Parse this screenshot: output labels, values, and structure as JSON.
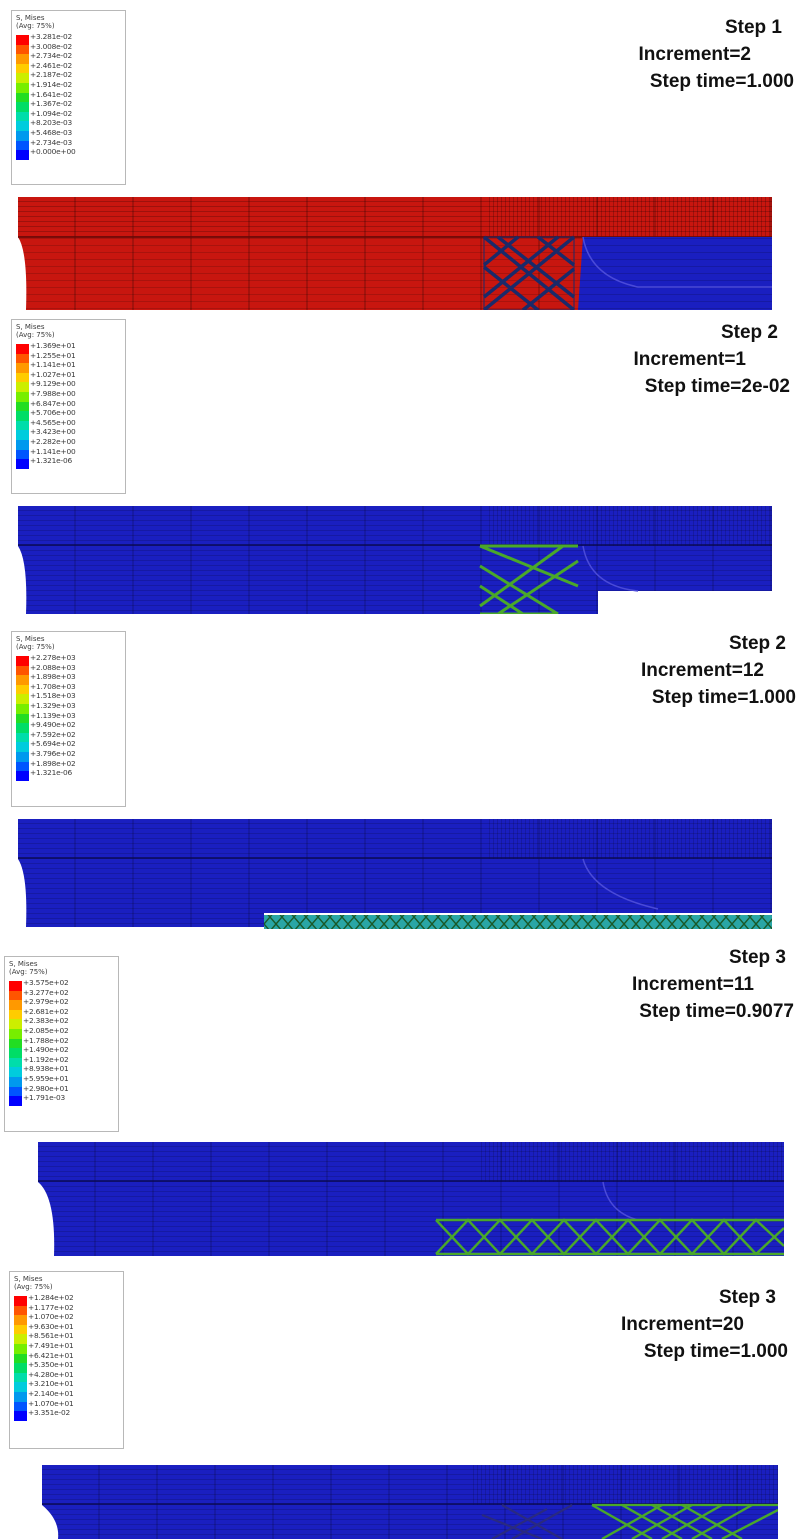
{
  "legend_title": "S, Mises",
  "legend_subtitle": "(Avg: 75%)",
  "legend_colors": [
    "#ff0000",
    "#ff5500",
    "#ff9900",
    "#ffcc00",
    "#ccee00",
    "#77ee00",
    "#22dd22",
    "#00dd66",
    "#00ddaa",
    "#00ccdd",
    "#0099ee",
    "#0055ff",
    "#0000ff"
  ],
  "colors": {
    "mesh_red": "#c8160f",
    "mesh_blue": "#1a1fc0",
    "stent_green": "#4aa82a",
    "stent_teal": "#2aa6a6",
    "stent_navy": "#1a2a6a"
  },
  "panels": [
    {
      "state": "red-stressed",
      "legend_values": [
        "+3.281e-02",
        "+3.008e-02",
        "+2.734e-02",
        "+2.461e-02",
        "+2.187e-02",
        "+1.914e-02",
        "+1.641e-02",
        "+1.367e-02",
        "+1.094e-02",
        "+8.203e-03",
        "+5.468e-03",
        "+2.734e-03",
        "+0.000e+00"
      ],
      "step": "Step 1",
      "increment": "Increment=2",
      "step_time": "Step time=1.000"
    },
    {
      "state": "stent-crimped",
      "legend_values": [
        "+1.369e+01",
        "+1.255e+01",
        "+1.141e+01",
        "+1.027e+01",
        "+9.129e+00",
        "+7.988e+00",
        "+6.847e+00",
        "+5.706e+00",
        "+4.565e+00",
        "+3.423e+00",
        "+2.282e+00",
        "+1.141e+00",
        "+1.321e-06"
      ],
      "step": "Step 2",
      "increment": "Increment=1",
      "step_time": "Step time=2e-02"
    },
    {
      "state": "stent-flat",
      "legend_values": [
        "+2.278e+03",
        "+2.088e+03",
        "+1.898e+03",
        "+1.708e+03",
        "+1.518e+03",
        "+1.329e+03",
        "+1.139e+03",
        "+9.490e+02",
        "+7.592e+02",
        "+5.694e+02",
        "+3.796e+02",
        "+1.898e+02",
        "+1.321e-06"
      ],
      "step": "Step 2",
      "increment": "Increment=12",
      "step_time": "Step time=1.000"
    },
    {
      "state": "stent-expanding",
      "legend_values": [
        "+3.575e+02",
        "+3.277e+02",
        "+2.979e+02",
        "+2.681e+02",
        "+2.383e+02",
        "+2.085e+02",
        "+1.788e+02",
        "+1.490e+02",
        "+1.192e+02",
        "+8.938e+01",
        "+5.959e+01",
        "+2.980e+01",
        "+1.791e-03"
      ],
      "step": "Step 3",
      "increment": "Increment=11",
      "step_time": "Step time=0.9077"
    },
    {
      "state": "stent-expanded",
      "legend_values": [
        "+1.284e+02",
        "+1.177e+02",
        "+1.070e+02",
        "+9.630e+01",
        "+8.561e+01",
        "+7.491e+01",
        "+6.421e+01",
        "+5.350e+01",
        "+4.280e+01",
        "+3.210e+01",
        "+2.140e+01",
        "+1.070e+01",
        "+3.351e-02"
      ],
      "step": "Step 3",
      "increment": "Increment=20",
      "step_time": "Step time=1.000"
    }
  ]
}
